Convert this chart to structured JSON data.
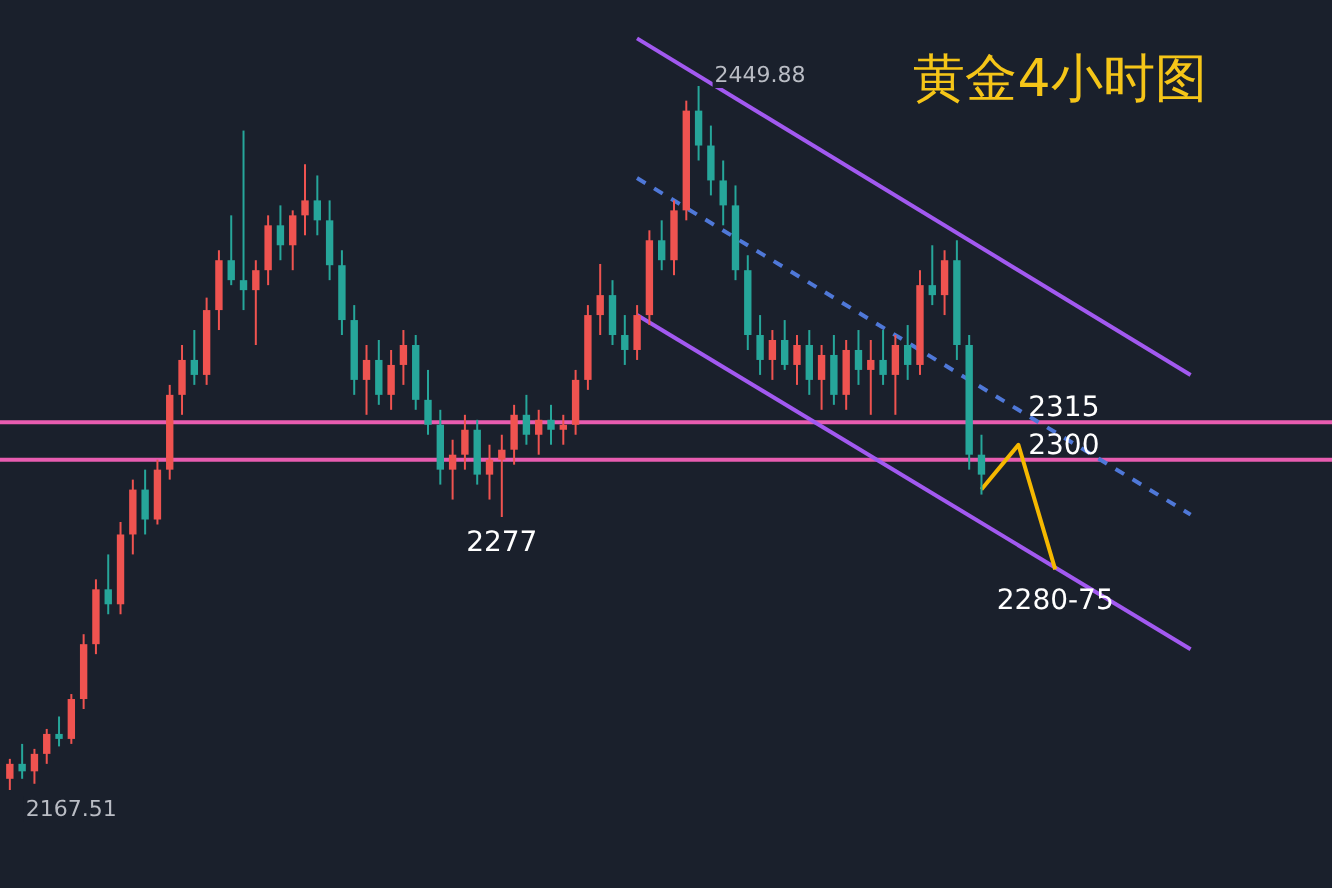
{
  "chart_data": {
    "type": "candlestick",
    "title": "黄金4小时图",
    "categories": [
      null,
      null,
      null,
      null,
      null,
      null,
      null,
      null,
      null,
      null,
      null,
      null,
      null,
      null,
      null,
      null,
      null,
      null,
      null,
      null,
      null,
      null,
      null,
      null,
      null,
      null,
      null,
      null,
      null,
      null,
      null,
      null,
      null,
      null,
      null,
      null,
      null,
      null,
      null,
      null,
      null,
      null,
      null,
      null,
      null,
      null,
      null,
      null,
      null,
      null,
      null,
      null,
      null,
      null,
      null,
      null,
      null,
      null,
      null,
      null,
      null,
      null,
      null,
      null,
      null,
      null,
      null,
      null,
      null,
      null,
      null,
      null,
      null,
      null,
      null,
      null,
      null,
      null,
      null,
      null,
      null,
      null,
      null,
      null,
      null,
      null,
      null,
      null,
      null,
      null,
      null,
      null,
      null,
      null,
      null,
      null,
      null,
      null,
      null,
      null,
      null,
      null,
      null,
      null,
      null,
      null,
      null,
      null
    ],
    "colors": [
      "#ef5350",
      "#26a69a",
      "#ef5350",
      "#ef5350",
      "#26a69a",
      "#ef5350",
      "#ef5350",
      "#ef5350",
      "#26a69a",
      "#ef5350",
      "#ef5350",
      "#26a69a",
      "#ef5350",
      "#ef5350",
      "#ef5350",
      "#26a69a",
      "#ef5350",
      "#ef5350",
      "#26a69a",
      "#26a69a",
      "#ef5350",
      "#ef5350",
      "#26a69a",
      "#ef5350",
      "#ef5350",
      "#26a69a",
      "#26a69a",
      "#26a69a",
      "#26a69a",
      "#ef5350",
      "#26a69a",
      "#ef5350",
      "#ef5350",
      "#26a69a",
      "#26a69a",
      "#26a69a",
      "#ef5350",
      "#ef5350",
      "#26a69a",
      "#ef5350",
      "#ef5350",
      "#ef5350",
      "#26a69a",
      "#ef5350",
      "#26a69a",
      "#ef5350",
      "#ef5350",
      "#ef5350",
      "#ef5350",
      "#26a69a",
      "#26a69a",
      "#ef5350",
      "#ef5350",
      "#26a69a",
      "#ef5350",
      "#ef5350",
      "#26a69a",
      "#26a69a",
      "#26a69a",
      "#26a69a",
      "#26a69a",
      "#26a69a",
      "#ef5350",
      "#26a69a",
      "#ef5350",
      "#26a69a",
      "#ef5350",
      "#26a69a",
      "#ef5350",
      "#26a69a",
      "#ef5350",
      "#26a69a",
      "#ef5350",
      "#26a69a",
      "#ef5350",
      "#26a69a",
      "#ef5350",
      "#26a69a",
      "#26a69a",
      "#26a69a",
      null,
      null,
      null,
      null,
      null,
      null,
      null,
      null,
      null,
      null,
      null,
      null,
      null,
      null,
      null,
      null,
      null,
      null,
      null,
      null,
      null,
      null,
      null,
      null,
      null,
      null,
      null,
      null
    ],
    "ohlc": [
      [
        2172,
        2180,
        2167.51,
        2178
      ],
      [
        2178,
        2186,
        2172,
        2175
      ],
      [
        2175,
        2184,
        2170,
        2182
      ],
      [
        2182,
        2192,
        2178,
        2190
      ],
      [
        2190,
        2197,
        2185,
        2188
      ],
      [
        2188,
        2206,
        2186,
        2204
      ],
      [
        2204,
        2230,
        2200,
        2226
      ],
      [
        2226,
        2252,
        2222,
        2248
      ],
      [
        2248,
        2262,
        2238,
        2242
      ],
      [
        2242,
        2275,
        2238,
        2270
      ],
      [
        2270,
        2292,
        2262,
        2288
      ],
      [
        2288,
        2296,
        2270,
        2276
      ],
      [
        2276,
        2300,
        2274,
        2296
      ],
      [
        2296,
        2330,
        2292,
        2326
      ],
      [
        2326,
        2346,
        2318,
        2340
      ],
      [
        2340,
        2352,
        2330,
        2334
      ],
      [
        2334,
        2365,
        2330,
        2360
      ],
      [
        2360,
        2384,
        2352,
        2380
      ],
      [
        2380,
        2398,
        2370,
        2372
      ],
      [
        2372,
        2432,
        2360,
        2368
      ],
      [
        2368,
        2380,
        2346,
        2376
      ],
      [
        2376,
        2398,
        2370,
        2394
      ],
      [
        2394,
        2402,
        2380,
        2386
      ],
      [
        2386,
        2400,
        2376,
        2398
      ],
      [
        2398,
        2418.5,
        2390,
        2404
      ],
      [
        2404,
        2414,
        2390,
        2396
      ],
      [
        2396,
        2404,
        2372,
        2378
      ],
      [
        2378,
        2384,
        2350,
        2356
      ],
      [
        2356,
        2362,
        2326,
        2332
      ],
      [
        2332,
        2346,
        2318,
        2340
      ],
      [
        2340,
        2348,
        2322,
        2326
      ],
      [
        2326,
        2344,
        2320,
        2338
      ],
      [
        2338,
        2352,
        2330,
        2346
      ],
      [
        2346,
        2350,
        2320,
        2324
      ],
      [
        2324,
        2336,
        2310,
        2314
      ],
      [
        2314,
        2320,
        2290,
        2296
      ],
      [
        2296,
        2308,
        2284,
        2302
      ],
      [
        2302,
        2318,
        2296,
        2312
      ],
      [
        2312,
        2316,
        2290,
        2294
      ],
      [
        2294,
        2306,
        2284,
        2300
      ],
      [
        2300,
        2310,
        2277,
        2304
      ],
      [
        2304,
        2322,
        2298,
        2318
      ],
      [
        2318,
        2326,
        2306,
        2310
      ],
      [
        2310,
        2320,
        2302,
        2316
      ],
      [
        2316,
        2322,
        2306,
        2312
      ],
      [
        2312,
        2318,
        2306,
        2314
      ],
      [
        2314,
        2336,
        2310,
        2332
      ],
      [
        2332,
        2362,
        2328,
        2358
      ],
      [
        2358,
        2378.5,
        2350,
        2366
      ],
      [
        2366,
        2372,
        2346,
        2350
      ],
      [
        2350,
        2358,
        2338,
        2344
      ],
      [
        2344,
        2362,
        2340,
        2358
      ],
      [
        2358,
        2392,
        2354,
        2388
      ],
      [
        2388,
        2396,
        2376,
        2380
      ],
      [
        2380,
        2404,
        2374,
        2400
      ],
      [
        2400,
        2444,
        2396,
        2440
      ],
      [
        2440,
        2449.88,
        2420,
        2426
      ],
      [
        2426,
        2434,
        2406,
        2412
      ],
      [
        2412,
        2420,
        2394,
        2402
      ],
      [
        2402,
        2410,
        2372,
        2376
      ],
      [
        2376,
        2382,
        2344,
        2350
      ],
      [
        2350,
        2358,
        2334,
        2340
      ],
      [
        2340,
        2352,
        2332,
        2348
      ],
      [
        2348,
        2356,
        2336,
        2338
      ],
      [
        2338,
        2350,
        2330,
        2346
      ],
      [
        2346,
        2352,
        2326,
        2332
      ],
      [
        2332,
        2346,
        2320,
        2342
      ],
      [
        2342,
        2350,
        2322,
        2326
      ],
      [
        2326,
        2348,
        2320,
        2344
      ],
      [
        2344,
        2352,
        2330,
        2336
      ],
      [
        2336,
        2348,
        2318,
        2340
      ],
      [
        2340,
        2352,
        2330,
        2334
      ],
      [
        2334,
        2350,
        2318,
        2346
      ],
      [
        2346,
        2354,
        2332,
        2338
      ],
      [
        2338,
        2376,
        2334,
        2370
      ],
      [
        2370,
        2386,
        2362,
        2366
      ],
      [
        2366,
        2384,
        2358,
        2380
      ],
      [
        2380,
        2388,
        2340,
        2346
      ],
      [
        2346,
        2350,
        2296,
        2302
      ],
      [
        2302,
        2310,
        2286,
        2294
      ],
      null,
      null,
      null,
      null,
      null,
      null,
      null,
      null,
      null,
      null,
      null,
      null,
      null,
      null,
      null,
      null,
      null,
      null,
      null,
      null,
      null,
      null,
      null,
      null,
      null,
      null,
      null,
      null
    ],
    "series": [
      {
        "type": "line",
        "color": "#a259f0",
        "values": [
          null,
          null,
          null,
          null,
          null,
          null,
          null,
          null,
          null,
          null,
          null,
          null,
          null,
          null,
          null,
          null,
          null,
          null,
          null,
          null,
          null,
          null,
          null,
          null,
          null,
          null,
          null,
          null,
          null,
          null,
          null,
          null,
          null,
          null,
          null,
          null,
          null,
          null,
          null,
          null,
          null,
          null,
          null,
          null,
          null,
          null,
          null,
          null,
          null,
          null,
          null,
          2469,
          null,
          null,
          null,
          null,
          null,
          null,
          null,
          null,
          null,
          null,
          null,
          null,
          null,
          null,
          null,
          null,
          null,
          null,
          null,
          null,
          null,
          null,
          null,
          null,
          null,
          null,
          null,
          null,
          null,
          null,
          null,
          null,
          null,
          null,
          null,
          null,
          null,
          null,
          null,
          null,
          null,
          null,
          null,
          null,
          2334,
          null,
          null,
          null,
          null,
          null,
          null,
          null,
          null,
          null,
          null,
          null
        ]
      },
      {
        "type": "line",
        "color": "#a259f0",
        "values": [
          null,
          null,
          null,
          null,
          null,
          null,
          null,
          null,
          null,
          null,
          null,
          null,
          null,
          null,
          null,
          null,
          null,
          null,
          null,
          null,
          null,
          null,
          null,
          null,
          null,
          null,
          null,
          null,
          null,
          null,
          null,
          null,
          null,
          null,
          null,
          null,
          null,
          null,
          null,
          null,
          null,
          null,
          null,
          null,
          null,
          null,
          null,
          null,
          null,
          null,
          null,
          2358,
          null,
          null,
          null,
          null,
          null,
          null,
          null,
          null,
          null,
          null,
          null,
          null,
          null,
          null,
          null,
          null,
          null,
          null,
          null,
          null,
          null,
          null,
          null,
          null,
          null,
          null,
          null,
          null,
          null,
          null,
          null,
          null,
          null,
          null,
          null,
          null,
          null,
          null,
          null,
          null,
          null,
          null,
          null,
          null,
          2224,
          null,
          null,
          null,
          null,
          null,
          null,
          null,
          null,
          null,
          null,
          null
        ]
      },
      {
        "type": "line",
        "color": "#4f78d8",
        "line_style": "dashed",
        "values": [
          null,
          null,
          null,
          null,
          null,
          null,
          null,
          null,
          null,
          null,
          null,
          null,
          null,
          null,
          null,
          null,
          null,
          null,
          null,
          null,
          null,
          null,
          null,
          null,
          null,
          null,
          null,
          null,
          null,
          null,
          null,
          null,
          null,
          null,
          null,
          null,
          null,
          null,
          null,
          null,
          null,
          null,
          null,
          null,
          null,
          null,
          null,
          null,
          null,
          null,
          null,
          2413,
          null,
          null,
          null,
          null,
          null,
          null,
          null,
          null,
          null,
          null,
          null,
          null,
          null,
          null,
          null,
          null,
          null,
          null,
          null,
          null,
          null,
          null,
          null,
          null,
          null,
          null,
          null,
          null,
          null,
          null,
          null,
          null,
          null,
          null,
          null,
          null,
          null,
          null,
          null,
          null,
          null,
          null,
          null,
          null,
          2278,
          null,
          null,
          null,
          null,
          null,
          null,
          null,
          null,
          null,
          null,
          null
        ]
      },
      {
        "type": "line",
        "color": "#f5b800",
        "values": [
          null,
          null,
          null,
          null,
          null,
          null,
          null,
          null,
          null,
          null,
          null,
          null,
          null,
          null,
          null,
          null,
          null,
          null,
          null,
          null,
          null,
          null,
          null,
          null,
          null,
          null,
          null,
          null,
          null,
          null,
          null,
          null,
          null,
          null,
          null,
          null,
          null,
          null,
          null,
          null,
          null,
          null,
          null,
          null,
          null,
          null,
          null,
          null,
          null,
          null,
          null,
          null,
          null,
          null,
          null,
          null,
          null,
          null,
          null,
          null,
          null,
          null,
          null,
          null,
          null,
          null,
          null,
          null,
          null,
          null,
          null,
          null,
          null,
          null,
          null,
          null,
          null,
          null,
          null,
          2288,
          null,
          null,
          2306,
          null,
          null,
          2256,
          null,
          null,
          null,
          null,
          null,
          null,
          null,
          null,
          null,
          null,
          null,
          null,
          null,
          null,
          null,
          null,
          null,
          null,
          null,
          null,
          null,
          null
        ]
      }
    ],
    "ref_lines": [
      {
        "axis": "y",
        "value": 2315,
        "label": "2315",
        "color": "#e85cb0"
      },
      {
        "axis": "y",
        "value": 2300,
        "label": "2300",
        "color": "#e85cb0"
      }
    ],
    "annotations": [
      "2449.88",
      "2167.51",
      {
        "text": "2277",
        "y": 2277
      },
      {
        "text": "2280-75",
        "y": 2256
      }
    ]
  }
}
